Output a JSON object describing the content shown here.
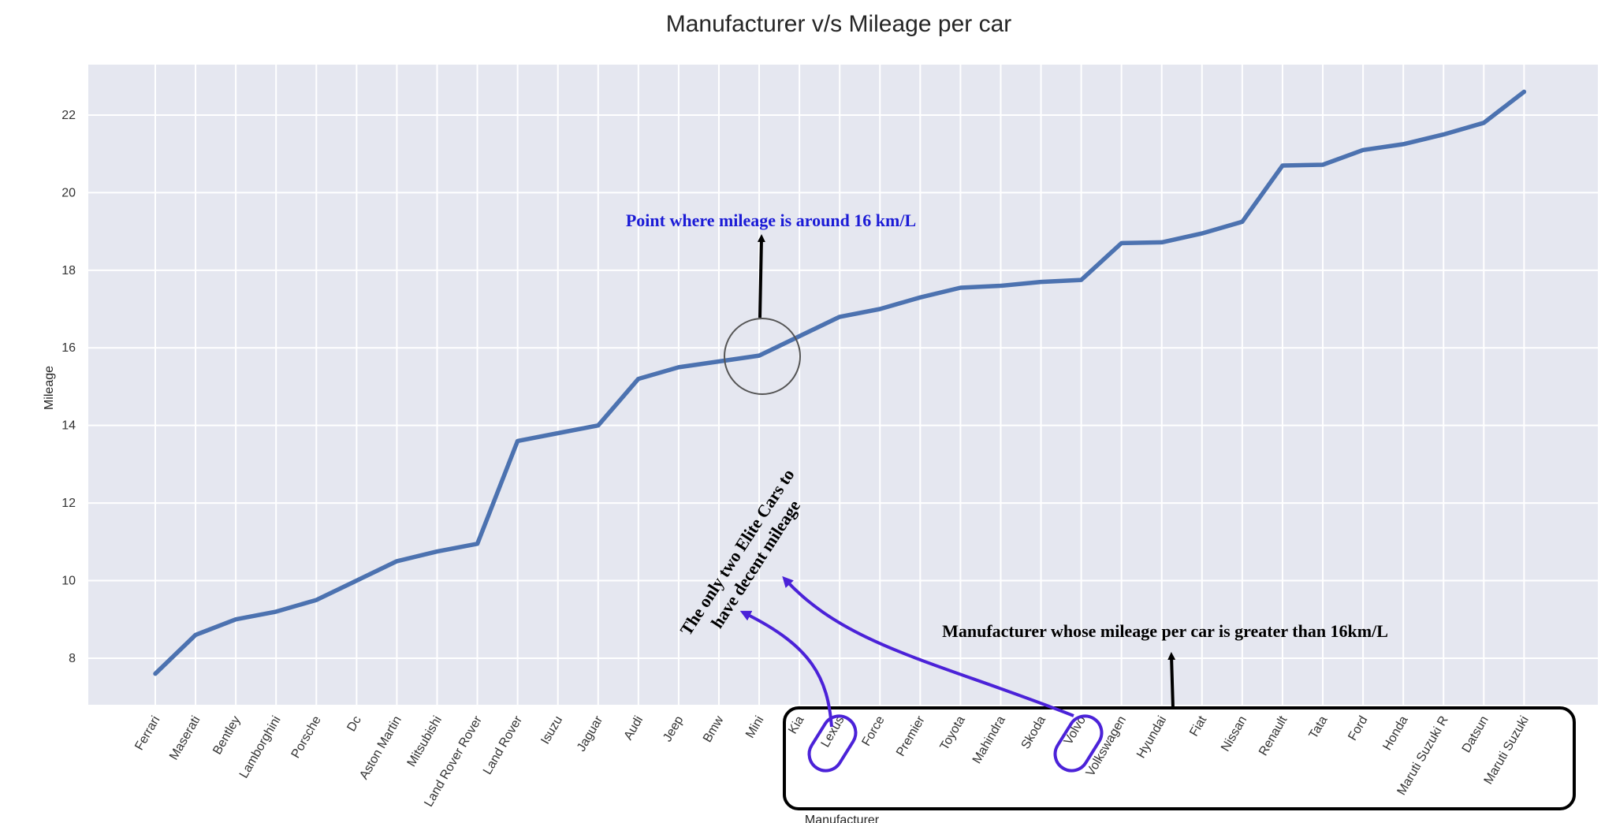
{
  "chart_data": {
    "type": "line",
    "title": "Manufacturer v/s Mileage per car",
    "xlabel": "Manufacturer",
    "ylabel": "Mileage",
    "ylim": [
      6.8,
      23.3
    ],
    "yticks": [
      8,
      10,
      12,
      14,
      16,
      18,
      20,
      22
    ],
    "grid": true,
    "categories": [
      "Ferrari",
      "Maserati",
      "Bentley",
      "Lamborghini",
      "Porsche",
      "Dc",
      "Aston Martin",
      "Mitsubishi",
      "Land Rover Rover",
      "Land Rover",
      "Isuzu",
      "Jaguar",
      "Audi",
      "Jeep",
      "Bmw",
      "Mini",
      "Kia",
      "Lexus",
      "Force",
      "Premier",
      "Toyota",
      "Mahindra",
      "Skoda",
      "Volvo",
      "Volkswagen",
      "Hyundai",
      "Fiat",
      "Nissan",
      "Renault",
      "Tata",
      "Ford",
      "Honda",
      "Maruti Suzuki R",
      "Datsun",
      "Maruti Suzuki"
    ],
    "series": [
      {
        "values": [
          7.6,
          8.6,
          9.0,
          9.2,
          9.5,
          10.0,
          10.5,
          10.75,
          10.95,
          13.6,
          13.8,
          14.0,
          15.2,
          15.5,
          15.65,
          15.8,
          16.3,
          16.8,
          17.0,
          17.3,
          17.55,
          17.6,
          17.7,
          17.75,
          18.7,
          18.72,
          18.95,
          19.25,
          20.7,
          20.72,
          21.1,
          21.25,
          21.5,
          21.8,
          22.6
        ],
        "color": "#4c72b0"
      }
    ]
  },
  "annotations": {
    "point_note": "Point where mileage is around 16 km/L",
    "elite_note_line1": "The only two Elite Cars to",
    "elite_note_line2": "have decent mileage",
    "group_note": "Manufacturer whose mileage per car is greater than 16km/L",
    "highlight_color": "#4b22d8"
  }
}
